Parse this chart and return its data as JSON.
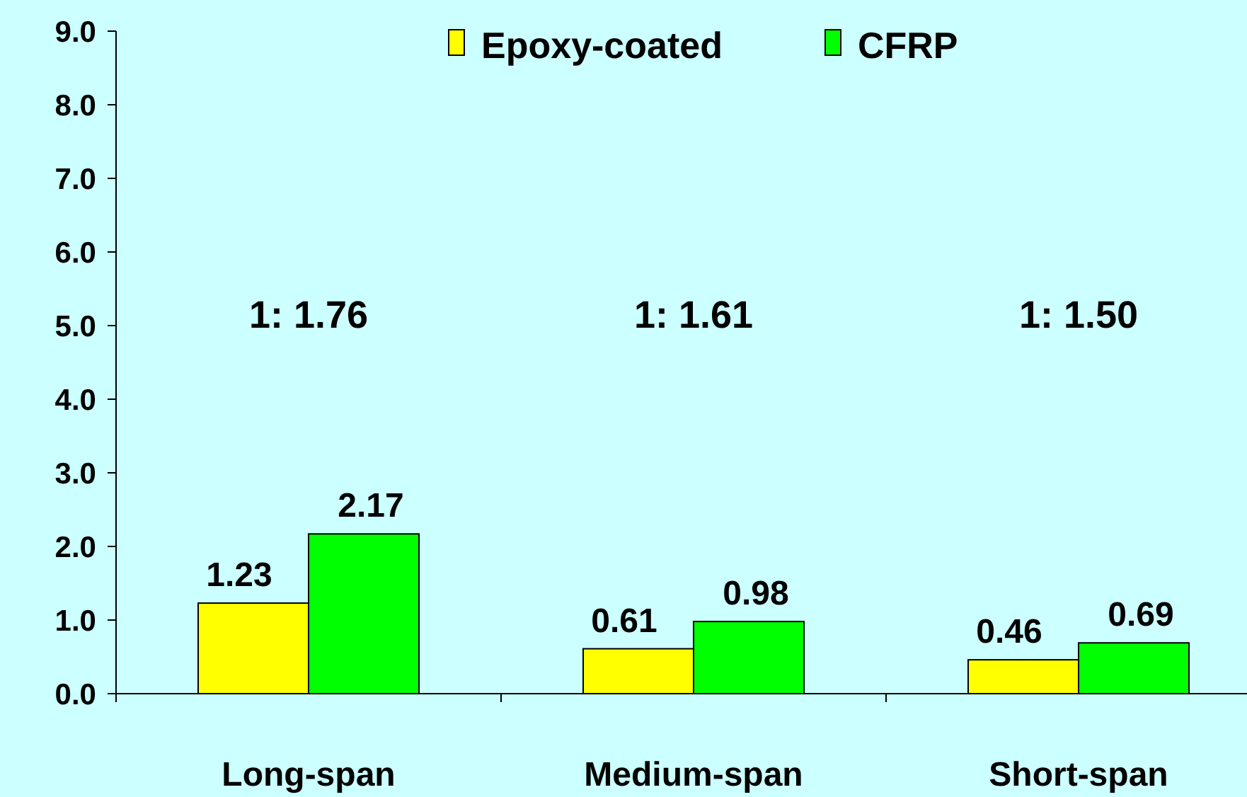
{
  "chart_data": {
    "type": "bar",
    "categories": [
      "Long-span",
      "Medium-span",
      "Short-span"
    ],
    "series": [
      {
        "name": "Epoxy-coated",
        "color": "#ffff00",
        "values": [
          1.23,
          0.61,
          0.46
        ]
      },
      {
        "name": "CFRP",
        "color": "#00ff00",
        "values": [
          2.17,
          0.98,
          0.69
        ]
      }
    ],
    "ylim": [
      0,
      9
    ],
    "yticks": [
      {
        "value": 0,
        "label": "0.0"
      },
      {
        "value": 1,
        "label": "1.0"
      },
      {
        "value": 2,
        "label": "2.0"
      },
      {
        "value": 3,
        "label": "3.0"
      },
      {
        "value": 4,
        "label": "4.0"
      },
      {
        "value": 5,
        "label": "5.0"
      },
      {
        "value": 6,
        "label": "6.0"
      },
      {
        "value": 7,
        "label": "7.0"
      },
      {
        "value": 8,
        "label": "8.0"
      },
      {
        "value": 9,
        "label": "9.0"
      }
    ],
    "annotations": [
      "1: 1.76",
      "1: 1.61",
      "1: 1.50"
    ],
    "data_labels": true,
    "legend": "top",
    "grid": false
  }
}
